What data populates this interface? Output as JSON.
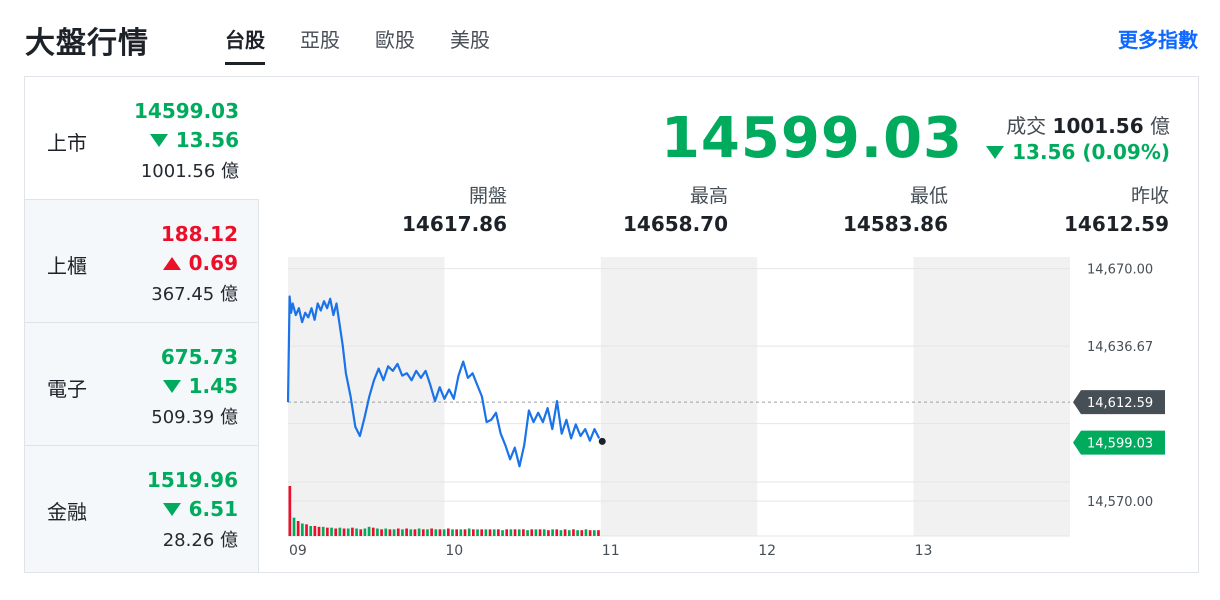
{
  "header": {
    "title": "大盤行情",
    "tabs": [
      {
        "label": "台股",
        "active": true
      },
      {
        "label": "亞股",
        "active": false
      },
      {
        "label": "歐股",
        "active": false
      },
      {
        "label": "美股",
        "active": false
      }
    ],
    "more_link": "更多指數"
  },
  "sidebar": {
    "items": [
      {
        "name": "上市",
        "price": "14599.03",
        "change": "13.56",
        "direction": "down",
        "volume": "1001.56 億",
        "active": true
      },
      {
        "name": "上櫃",
        "price": "188.12",
        "change": "0.69",
        "direction": "up",
        "volume": "367.45 億",
        "active": false
      },
      {
        "name": "電子",
        "price": "675.73",
        "change": "1.45",
        "direction": "down",
        "volume": "509.39 億",
        "active": false
      },
      {
        "name": "金融",
        "price": "1519.96",
        "change": "6.51",
        "direction": "down",
        "volume": "28.26 億",
        "active": false
      }
    ]
  },
  "quote": {
    "price": "14599.03",
    "volume_label": "成交",
    "volume_value": "1001.56",
    "volume_unit": "億",
    "change": "13.56 (0.09%)",
    "stats": [
      {
        "label": "開盤",
        "value": "14617.86"
      },
      {
        "label": "最高",
        "value": "14658.70"
      },
      {
        "label": "最低",
        "value": "14583.86"
      },
      {
        "label": "昨收",
        "value": "14612.59"
      }
    ]
  },
  "colors": {
    "up": "#eb0f29",
    "down": "#00ab5e",
    "line": "#1a73e8",
    "link": "#0f69ff"
  },
  "chart_data": {
    "type": "line",
    "x_ticks": [
      "09",
      "10",
      "11",
      "12",
      "13"
    ],
    "y_ticks": [
      "14,670.00",
      "14,636.67",
      "14,570.00"
    ],
    "ylim": [
      14555,
      14675
    ],
    "x_range": [
      9,
      14
    ],
    "reference_label": "14,612.59",
    "reference_value": 14612.59,
    "current_label": "14,599.03",
    "current_value": 14599.03,
    "series": [
      {
        "x": [
          9.0,
          9.01,
          9.02,
          9.03,
          9.05,
          9.07,
          9.09,
          9.11,
          9.13,
          9.15,
          9.17,
          9.19,
          9.21,
          9.23,
          9.25,
          9.27,
          9.29,
          9.31,
          9.33,
          9.35,
          9.37,
          9.4,
          9.43,
          9.46,
          9.49,
          9.52,
          9.55,
          9.58,
          9.61,
          9.64,
          9.67,
          9.7,
          9.73,
          9.76,
          9.79,
          9.82,
          9.85,
          9.88,
          9.91,
          9.94,
          9.97,
          10.0,
          10.03,
          10.06,
          10.09,
          10.12,
          10.15,
          10.18,
          10.21,
          10.24,
          10.27,
          10.3,
          10.33,
          10.36,
          10.39,
          10.42,
          10.45,
          10.48,
          10.51,
          10.54,
          10.57,
          10.6,
          10.63,
          10.66,
          10.69,
          10.72,
          10.75,
          10.78,
          10.81,
          10.84,
          10.87,
          10.9,
          10.93,
          10.96,
          10.99
        ],
        "y": [
          14612.6,
          14658.0,
          14651.0,
          14655.0,
          14650.0,
          14653.0,
          14647.0,
          14651.0,
          14649.0,
          14653.0,
          14648.0,
          14655.0,
          14652.0,
          14656.0,
          14653.0,
          14657.0,
          14650.0,
          14655.0,
          14646.0,
          14637.0,
          14625.0,
          14615.0,
          14602.0,
          14598.0,
          14606.0,
          14615.0,
          14622.0,
          14627.0,
          14622.0,
          14628.0,
          14626.0,
          14629.0,
          14624.0,
          14625.0,
          14622.0,
          14626.0,
          14623.0,
          14626.0,
          14620.0,
          14613.0,
          14619.0,
          14614.0,
          14618.0,
          14614.0,
          14624.0,
          14630.0,
          14623.0,
          14625.0,
          14620.0,
          14615.0,
          14604.0,
          14605.0,
          14608.0,
          14599.0,
          14594.0,
          14588.0,
          14593.0,
          14585.0,
          14594.0,
          14609.0,
          14604.0,
          14608.0,
          14604.0,
          14610.0,
          14601.0,
          14613.0,
          14599.0,
          14605.0,
          14597.0,
          14603.0,
          14598.0,
          14601.0,
          14596.0,
          14601.0,
          14597.0
        ]
      }
    ],
    "volume": [
      60,
      22,
      18,
      15,
      14,
      12,
      12,
      11,
      11,
      10,
      10,
      9,
      10,
      9,
      9,
      10,
      9,
      8,
      9,
      11,
      10,
      9,
      8,
      9,
      8,
      8,
      9,
      8,
      9,
      8,
      8,
      9,
      8,
      8,
      9,
      8,
      8,
      8,
      9,
      8,
      8,
      8,
      8,
      9,
      8,
      8,
      8,
      8,
      8,
      8,
      8,
      7,
      8,
      8,
      8,
      8,
      8,
      7,
      8,
      8,
      8,
      8,
      7,
      8,
      8,
      7,
      8,
      7,
      8,
      7,
      7,
      8,
      7,
      7,
      7
    ],
    "volume_colors": [
      "up",
      "down",
      "up",
      "down",
      "up",
      "down",
      "up",
      "up",
      "down",
      "up",
      "down",
      "up",
      "down",
      "up",
      "down",
      "up",
      "down",
      "up",
      "down",
      "down",
      "up",
      "down",
      "up",
      "down",
      "up",
      "down",
      "up",
      "down",
      "up",
      "down",
      "up",
      "down",
      "up",
      "down",
      "up",
      "down",
      "up",
      "down",
      "up",
      "down",
      "up",
      "down",
      "up",
      "down",
      "up",
      "down",
      "up",
      "down",
      "up",
      "down",
      "up",
      "down",
      "up",
      "down",
      "up",
      "down",
      "up",
      "down",
      "up",
      "down",
      "up",
      "down",
      "up",
      "down",
      "up",
      "down",
      "up",
      "down",
      "up",
      "down",
      "up",
      "down",
      "up",
      "down",
      "up"
    ]
  }
}
